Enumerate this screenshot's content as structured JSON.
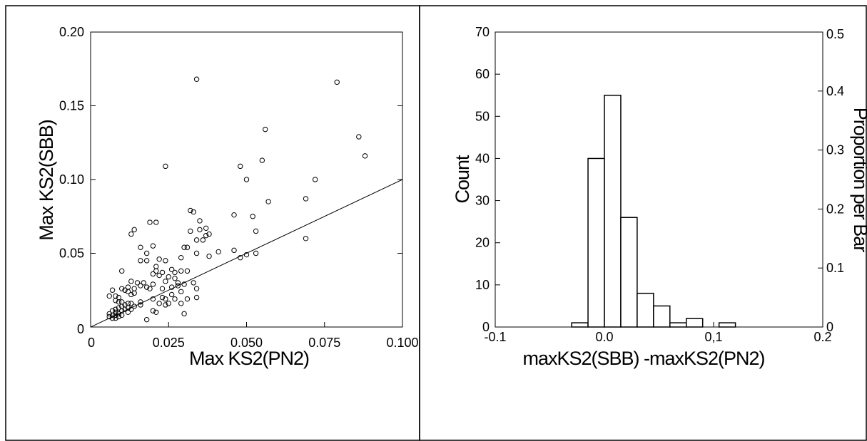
{
  "chart_data": [
    {
      "type": "scatter",
      "xlabel": "Max KS2(PN2)",
      "ylabel": "Max KS2(SBB)",
      "xlim": [
        0,
        0.1
      ],
      "ylim": [
        0,
        0.2
      ],
      "x_ticks": [
        0,
        0.025,
        0.05,
        0.075,
        0.1
      ],
      "x_tick_labels": [
        "0",
        "0.025",
        "0.050",
        "0.075",
        "0.100"
      ],
      "y_ticks": [
        0,
        0.05,
        0.1,
        0.15,
        0.2
      ],
      "y_tick_labels": [
        "0",
        "0.05",
        "0.10",
        "0.15",
        "0.20"
      ],
      "reference_line": {
        "x": [
          0,
          0.1
        ],
        "y": [
          0,
          0.1
        ]
      },
      "marker": "open-circle",
      "points": [
        [
          0.034,
          0.168
        ],
        [
          0.079,
          0.166
        ],
        [
          0.056,
          0.134
        ],
        [
          0.086,
          0.129
        ],
        [
          0.088,
          0.116
        ],
        [
          0.055,
          0.113
        ],
        [
          0.024,
          0.109
        ],
        [
          0.048,
          0.109
        ],
        [
          0.072,
          0.1
        ],
        [
          0.05,
          0.1
        ],
        [
          0.069,
          0.087
        ],
        [
          0.057,
          0.085
        ],
        [
          0.032,
          0.079
        ],
        [
          0.033,
          0.078
        ],
        [
          0.046,
          0.076
        ],
        [
          0.052,
          0.075
        ],
        [
          0.035,
          0.072
        ],
        [
          0.019,
          0.071
        ],
        [
          0.021,
          0.071
        ],
        [
          0.037,
          0.067
        ],
        [
          0.014,
          0.066
        ],
        [
          0.035,
          0.066
        ],
        [
          0.032,
          0.065
        ],
        [
          0.053,
          0.065
        ],
        [
          0.013,
          0.063
        ],
        [
          0.038,
          0.063
        ],
        [
          0.037,
          0.062
        ],
        [
          0.034,
          0.059
        ],
        [
          0.036,
          0.059
        ],
        [
          0.069,
          0.06
        ],
        [
          0.016,
          0.054
        ],
        [
          0.02,
          0.055
        ],
        [
          0.03,
          0.054
        ],
        [
          0.031,
          0.054
        ],
        [
          0.046,
          0.052
        ],
        [
          0.041,
          0.051
        ],
        [
          0.018,
          0.05
        ],
        [
          0.034,
          0.05
        ],
        [
          0.053,
          0.05
        ],
        [
          0.05,
          0.049
        ],
        [
          0.048,
          0.047
        ],
        [
          0.038,
          0.048
        ],
        [
          0.022,
          0.046
        ],
        [
          0.024,
          0.045
        ],
        [
          0.016,
          0.045
        ],
        [
          0.018,
          0.045
        ],
        [
          0.029,
          0.047
        ],
        [
          0.021,
          0.041
        ],
        [
          0.021,
          0.038
        ],
        [
          0.023,
          0.037
        ],
        [
          0.01,
          0.038
        ],
        [
          0.026,
          0.039
        ],
        [
          0.029,
          0.038
        ],
        [
          0.027,
          0.037
        ],
        [
          0.031,
          0.038
        ],
        [
          0.02,
          0.036
        ],
        [
          0.022,
          0.035
        ],
        [
          0.025,
          0.034
        ],
        [
          0.027,
          0.033
        ],
        [
          0.024,
          0.031
        ],
        [
          0.015,
          0.03
        ],
        [
          0.013,
          0.031
        ],
        [
          0.017,
          0.03
        ],
        [
          0.016,
          0.028
        ],
        [
          0.02,
          0.029
        ],
        [
          0.028,
          0.03
        ],
        [
          0.03,
          0.029
        ],
        [
          0.033,
          0.03
        ],
        [
          0.018,
          0.027
        ],
        [
          0.019,
          0.026
        ],
        [
          0.023,
          0.026
        ],
        [
          0.012,
          0.027
        ],
        [
          0.014,
          0.026
        ],
        [
          0.01,
          0.026
        ],
        [
          0.011,
          0.025
        ],
        [
          0.007,
          0.025
        ],
        [
          0.028,
          0.028
        ],
        [
          0.026,
          0.027
        ],
        [
          0.029,
          0.024
        ],
        [
          0.034,
          0.026
        ],
        [
          0.012,
          0.024
        ],
        [
          0.014,
          0.023
        ],
        [
          0.013,
          0.022
        ],
        [
          0.026,
          0.022
        ],
        [
          0.023,
          0.02
        ],
        [
          0.024,
          0.019
        ],
        [
          0.02,
          0.019
        ],
        [
          0.027,
          0.019
        ],
        [
          0.031,
          0.019
        ],
        [
          0.034,
          0.02
        ],
        [
          0.009,
          0.02
        ],
        [
          0.008,
          0.021
        ],
        [
          0.006,
          0.021
        ],
        [
          0.008,
          0.018
        ],
        [
          0.009,
          0.017
        ],
        [
          0.01,
          0.017
        ],
        [
          0.012,
          0.016
        ],
        [
          0.013,
          0.016
        ],
        [
          0.016,
          0.017
        ],
        [
          0.016,
          0.015
        ],
        [
          0.022,
          0.016
        ],
        [
          0.024,
          0.015
        ],
        [
          0.025,
          0.016
        ],
        [
          0.029,
          0.016
        ],
        [
          0.011,
          0.015
        ],
        [
          0.01,
          0.014
        ],
        [
          0.012,
          0.013
        ],
        [
          0.014,
          0.014
        ],
        [
          0.009,
          0.013
        ],
        [
          0.008,
          0.012
        ],
        [
          0.011,
          0.012
        ],
        [
          0.007,
          0.011
        ],
        [
          0.01,
          0.011
        ],
        [
          0.012,
          0.01
        ],
        [
          0.013,
          0.012
        ],
        [
          0.02,
          0.011
        ],
        [
          0.021,
          0.01
        ],
        [
          0.03,
          0.009
        ],
        [
          0.008,
          0.01
        ],
        [
          0.009,
          0.009
        ],
        [
          0.006,
          0.009
        ],
        [
          0.007,
          0.008
        ],
        [
          0.008,
          0.008
        ],
        [
          0.009,
          0.007
        ],
        [
          0.006,
          0.007
        ],
        [
          0.01,
          0.008
        ],
        [
          0.018,
          0.005
        ],
        [
          0.007,
          0.006
        ],
        [
          0.008,
          0.006
        ]
      ]
    },
    {
      "type": "bar",
      "subtype": "histogram",
      "xlabel": "maxKS2(SBB) -maxKS2(PN2)",
      "ylabel": "Count",
      "y2label": "Proportion per Bar",
      "xlim": [
        -0.1,
        0.2
      ],
      "ylim": [
        0,
        70
      ],
      "y2lim": [
        0,
        0.5
      ],
      "x_ticks": [
        -0.1,
        0.0,
        0.1,
        0.2
      ],
      "x_tick_labels": [
        "-0.1",
        "0.0",
        "0,1",
        "0.2"
      ],
      "y_ticks": [
        0,
        10,
        20,
        30,
        40,
        50,
        60,
        70
      ],
      "y_tick_labels": [
        "0",
        "10",
        "20",
        "30",
        "40",
        "50",
        "60",
        "70"
      ],
      "y2_ticks": [
        0,
        0.1,
        0.2,
        0.3,
        0.4,
        0.5
      ],
      "y2_tick_labels": [
        "0",
        "0.1",
        "0.2",
        "0.3",
        "0.4",
        "0.5"
      ],
      "bin_edges": [
        -0.03,
        -0.015,
        0.0,
        0.015,
        0.03,
        0.045,
        0.06,
        0.075,
        0.09,
        0.105,
        0.12,
        0.135
      ],
      "values": [
        1,
        40,
        55,
        26,
        8,
        5,
        1,
        2,
        0,
        1,
        0
      ]
    }
  ]
}
